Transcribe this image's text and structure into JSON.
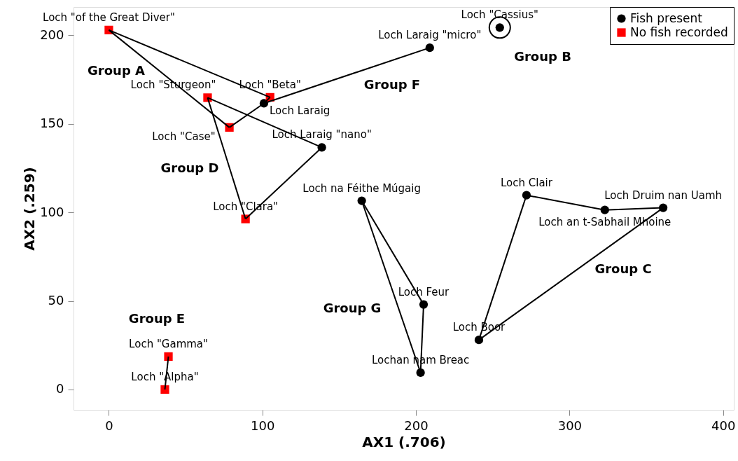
{
  "chart_data": {
    "type": "scatter",
    "xlabel": "AX1 (.706)",
    "ylabel": "AX2 (.259)",
    "xlim": [
      -23,
      407
    ],
    "ylim": [
      -11.5,
      216
    ],
    "xticks": [
      0,
      100,
      200,
      300,
      400
    ],
    "yticks": [
      0,
      50,
      100,
      150,
      200
    ],
    "grid": false,
    "legend": "top right",
    "series": [
      {
        "type": "line",
        "color": "#000000",
        "marker": "none",
        "x": [
          0,
          105
        ],
        "values": [
          203,
          165
        ]
      },
      {
        "type": "line",
        "color": "#000000",
        "marker": "none",
        "x": [
          101,
          105
        ],
        "values": [
          161.6,
          165
        ]
      },
      {
        "type": "line",
        "color": "#000000",
        "marker": "none",
        "x": [
          78.5,
          101
        ],
        "values": [
          148,
          161.6
        ]
      },
      {
        "type": "line",
        "color": "#000000",
        "marker": "none",
        "x": [
          0,
          78.5
        ],
        "values": [
          203,
          148
        ]
      },
      {
        "type": "line",
        "color": "#000000",
        "marker": "none",
        "x": [
          101,
          209
        ],
        "values": [
          161.6,
          193
        ]
      },
      {
        "type": "line",
        "color": "#000000",
        "marker": "none",
        "x": [
          64.3,
          138.7
        ],
        "values": [
          164.8,
          136.7
        ]
      },
      {
        "type": "line",
        "color": "#000000",
        "marker": "none",
        "x": [
          89,
          138.7
        ],
        "values": [
          96.3,
          136.7
        ]
      },
      {
        "type": "line",
        "color": "#000000",
        "marker": "none",
        "x": [
          64.3,
          89
        ],
        "values": [
          164.8,
          96.3
        ]
      },
      {
        "type": "line",
        "color": "#000000",
        "marker": "none",
        "x": [
          164.7,
          205
        ],
        "values": [
          106.6,
          48
        ]
      },
      {
        "type": "line",
        "color": "#000000",
        "marker": "none",
        "x": [
          203,
          205
        ],
        "values": [
          9.5,
          48
        ]
      },
      {
        "type": "line",
        "color": "#000000",
        "marker": "none",
        "x": [
          164.7,
          203
        ],
        "values": [
          106.6,
          9.5
        ]
      },
      {
        "type": "line",
        "color": "#000000",
        "marker": "none",
        "x": [
          272,
          323
        ],
        "values": [
          109.7,
          101.4
        ]
      },
      {
        "type": "line",
        "color": "#000000",
        "marker": "none",
        "x": [
          323,
          361
        ],
        "values": [
          101.4,
          102.6
        ]
      },
      {
        "type": "line",
        "color": "#000000",
        "marker": "none",
        "x": [
          241,
          361
        ],
        "values": [
          28,
          102.6
        ]
      },
      {
        "type": "line",
        "color": "#000000",
        "marker": "none",
        "x": [
          241,
          272
        ],
        "values": [
          28,
          109.7
        ]
      },
      {
        "type": "line",
        "color": "#000000",
        "marker": "none",
        "x": [
          36.5,
          38.8
        ],
        "values": [
          0,
          18.6
        ]
      },
      {
        "type": "line",
        "color": "#000000",
        "marker": "circle",
        "x": [
          254.6
        ],
        "values": [
          204.4
        ]
      },
      {
        "name": "Fish present",
        "color": "#000000",
        "marker": "circle",
        "x": [
          209,
          138.7,
          101,
          254.6,
          164.7,
          205,
          203,
          272,
          323,
          361,
          241
        ],
        "values": [
          193,
          136.7,
          161.6,
          204.4,
          106.6,
          48,
          9.5,
          109.7,
          101.4,
          102.6,
          28
        ],
        "value_labels": [
          "Loch Laraig \"micro\"",
          "Loch Laraig \"nano\"",
          "Loch Laraig",
          "Loch \"Cassius\"",
          "Loch na Féithe Múgaig",
          "Loch Feur",
          "Lochan nam Breac",
          "Loch Clair",
          "Loch an t-Sabhail Mhoine",
          "Loch Druim nan Uamh",
          "Loch Boor"
        ]
      },
      {
        "name": "No fish recorded",
        "color": "#ff0000",
        "marker": "square",
        "x": [
          0,
          64.3,
          105,
          78.5,
          89,
          38.8,
          36.5
        ],
        "values": [
          203,
          164.8,
          165,
          148,
          96.3,
          18.6,
          0
        ],
        "value_labels": [
          "Loch \"of the Great Diver\"",
          "Loch \"Sturgeon\"",
          "Loch \"Beta\"",
          "Loch \"Case\"",
          "Loch \"Clara\"",
          "Loch \"Gamma\"",
          "Loch \"Alpha\""
        ]
      }
    ],
    "annotations": [
      "Group A",
      "Group B",
      "Group F",
      "Group D",
      "Group C",
      "Group G",
      "Group E"
    ]
  }
}
